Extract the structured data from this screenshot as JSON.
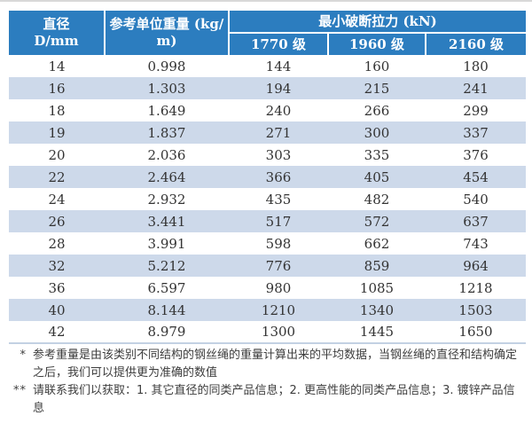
{
  "document": {
    "table": {
      "header": {
        "diameter_line1": "直径",
        "diameter_line2": "D/mm",
        "weight_label": "参考单位重量 (kg/m)",
        "breaking_force_label": "最小破断拉力 (kN)",
        "grades": [
          "1770 级",
          "1960 级",
          "2160 级"
        ]
      },
      "rows": [
        {
          "diameter": "14",
          "weight": "0.998",
          "kn_1770": "144",
          "kn_1960": "160",
          "kn_2160": "180"
        },
        {
          "diameter": "16",
          "weight": "1.303",
          "kn_1770": "194",
          "kn_1960": "215",
          "kn_2160": "241"
        },
        {
          "diameter": "18",
          "weight": "1.649",
          "kn_1770": "240",
          "kn_1960": "266",
          "kn_2160": "299"
        },
        {
          "diameter": "19",
          "weight": "1.837",
          "kn_1770": "271",
          "kn_1960": "300",
          "kn_2160": "337"
        },
        {
          "diameter": "20",
          "weight": "2.036",
          "kn_1770": "303",
          "kn_1960": "335",
          "kn_2160": "376"
        },
        {
          "diameter": "22",
          "weight": "2.464",
          "kn_1770": "366",
          "kn_1960": "405",
          "kn_2160": "454"
        },
        {
          "diameter": "24",
          "weight": "2.932",
          "kn_1770": "435",
          "kn_1960": "482",
          "kn_2160": "540"
        },
        {
          "diameter": "26",
          "weight": "3.441",
          "kn_1770": "517",
          "kn_1960": "572",
          "kn_2160": "637"
        },
        {
          "diameter": "28",
          "weight": "3.991",
          "kn_1770": "598",
          "kn_1960": "662",
          "kn_2160": "743"
        },
        {
          "diameter": "32",
          "weight": "5.212",
          "kn_1770": "776",
          "kn_1960": "859",
          "kn_2160": "964"
        },
        {
          "diameter": "36",
          "weight": "6.597",
          "kn_1770": "980",
          "kn_1960": "1085",
          "kn_2160": "1218"
        },
        {
          "diameter": "40",
          "weight": "8.144",
          "kn_1770": "1210",
          "kn_1960": "1340",
          "kn_2160": "1503"
        },
        {
          "diameter": "42",
          "weight": "8.979",
          "kn_1770": "1300",
          "kn_1960": "1445",
          "kn_2160": "1650"
        }
      ]
    },
    "footnotes": [
      {
        "marker": "*",
        "text": "参考重量是由该类别不同结构的钢丝绳的重量计算出来的平均数据，当钢丝绳的直径和结构确定之后，我们可以提供更为准确的数值"
      },
      {
        "marker": "**",
        "text": "请联系我们以获取：1. 其它直径的同类产品信息；2. 更高性能的同类产品信息；3. 镀锌产品信息"
      }
    ]
  },
  "colors": {
    "header_blue": "#2c7dbf",
    "stripe_blue": "#cdd9ea",
    "body_text": "#333333",
    "footnote_text": "#3d3d3d",
    "table_bottom_border": "#c3d1e3"
  }
}
